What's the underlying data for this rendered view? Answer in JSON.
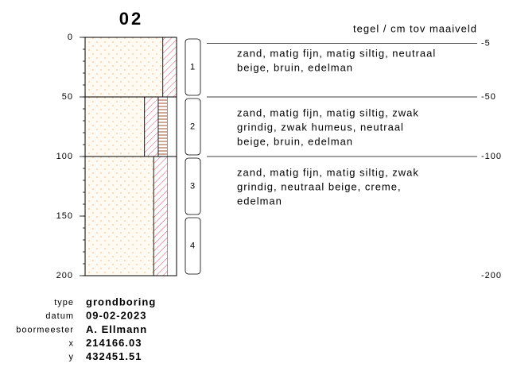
{
  "title": "02",
  "header": "tegel / cm tov maaiveld",
  "depth_axis": {
    "lim": [
      0,
      200
    ],
    "ticks": [
      0,
      50,
      100,
      150,
      200
    ],
    "minor_step": 10
  },
  "layers": [
    {
      "top": 0,
      "bottom": 50,
      "level": -5,
      "description": [
        "zand, matig fijn, matig siltig, neutraal",
        "beige, bruin, edelman"
      ]
    },
    {
      "top": 50,
      "bottom": 100,
      "level": -50,
      "description": [
        "zand, matig fijn, matig siltig, zwak",
        "grindig, zwak humeus, neutraal",
        "beige, bruin, edelman"
      ]
    },
    {
      "top": 100,
      "bottom": 200,
      "level": -100,
      "description": [
        "zand, matig fijn, matig siltig, zwak",
        "grindig, neutraal beige, creme,",
        "edelman"
      ]
    }
  ],
  "bottom_level": -200,
  "samples": [
    {
      "label": "1",
      "top": 0,
      "bottom": 50
    },
    {
      "label": "2",
      "top": 50,
      "bottom": 100
    },
    {
      "label": "3",
      "top": 100,
      "bottom": 150
    },
    {
      "label": "4",
      "top": 150,
      "bottom": 200
    }
  ],
  "metadata": [
    {
      "key": "type",
      "value": "grondboring"
    },
    {
      "key": "datum",
      "value": "09-02-2023"
    },
    {
      "key": "boormeester",
      "value": "A. Ellmann"
    },
    {
      "key": "x",
      "value": "214166.03"
    },
    {
      "key": "y",
      "value": "432451.51"
    }
  ]
}
